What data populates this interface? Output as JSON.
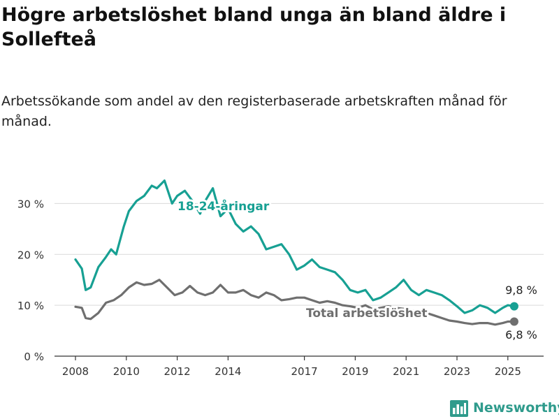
{
  "header": {
    "title": "Högre arbetslöshet bland unga än bland äldre i Sollefteå",
    "subtitle": "Arbetssökande som andel av den registerbaserade arbetskraften månad för månad."
  },
  "brand": {
    "name": "Newsworthy",
    "icon": "bar-chart-logo-icon",
    "color": "#2f9b8c"
  },
  "chart_data": {
    "type": "line",
    "title": "Högre arbetslöshet bland unga än bland äldre i Sollefteå",
    "subtitle": "Arbetssökande som andel av den registerbaserade arbetskraften månad för månad.",
    "xlabel": "",
    "ylabel": "",
    "xlim": [
      2008.0,
      2025.3
    ],
    "ylim": [
      0,
      35
    ],
    "x_ticks": [
      2008,
      2010,
      2012,
      2014,
      2017,
      2019,
      2021,
      2023,
      2025
    ],
    "x_tick_labels": [
      "2008",
      "2010",
      "2012",
      "2014",
      "2017",
      "2019",
      "2021",
      "2023",
      "2025"
    ],
    "y_ticks": [
      0,
      10,
      20,
      30
    ],
    "y_tick_labels": [
      "0 %",
      "10 %",
      "20 %",
      "30 %"
    ],
    "grid": "horizontal",
    "legend": "inline labels",
    "series": [
      {
        "name": "18-24-åringar",
        "color": "#17a093",
        "end_label": "9,8 %",
        "x": [
          2008.0,
          2008.25,
          2008.4,
          2008.6,
          2008.9,
          2009.2,
          2009.4,
          2009.6,
          2009.9,
          2010.1,
          2010.4,
          2010.7,
          2011.0,
          2011.2,
          2011.5,
          2011.8,
          2012.0,
          2012.3,
          2012.6,
          2012.9,
          2013.1,
          2013.4,
          2013.7,
          2014.0,
          2014.3,
          2014.6,
          2014.9,
          2015.2,
          2015.5,
          2015.8,
          2016.1,
          2016.4,
          2016.7,
          2017.0,
          2017.3,
          2017.6,
          2017.9,
          2018.2,
          2018.5,
          2018.8,
          2019.1,
          2019.4,
          2019.7,
          2020.0,
          2020.3,
          2020.6,
          2020.9,
          2021.2,
          2021.5,
          2021.8,
          2022.1,
          2022.4,
          2022.7,
          2023.0,
          2023.3,
          2023.6,
          2023.9,
          2024.2,
          2024.5,
          2024.8,
          2025.0,
          2025.25
        ],
        "y": [
          19.0,
          17.2,
          13.0,
          13.5,
          17.5,
          19.5,
          21.0,
          20.0,
          25.5,
          28.5,
          30.5,
          31.5,
          33.5,
          33.0,
          34.5,
          30.0,
          31.5,
          32.5,
          30.5,
          28.0,
          30.5,
          33.0,
          27.5,
          29.0,
          26.0,
          24.5,
          25.5,
          24.0,
          21.0,
          21.5,
          22.0,
          20.0,
          17.0,
          17.8,
          19.0,
          17.5,
          17.0,
          16.5,
          15.0,
          13.0,
          12.5,
          13.0,
          11.0,
          11.5,
          12.5,
          13.5,
          15.0,
          13.0,
          12.0,
          13.0,
          12.5,
          12.0,
          11.0,
          9.8,
          8.5,
          9.0,
          10.0,
          9.5,
          8.5,
          9.5,
          10.0,
          9.8
        ]
      },
      {
        "name": "Total arbetslöshet",
        "color": "#6f6f6f",
        "end_label": "6,8 %",
        "x": [
          2008.0,
          2008.25,
          2008.4,
          2008.6,
          2008.9,
          2009.2,
          2009.5,
          2009.8,
          2010.1,
          2010.4,
          2010.7,
          2011.0,
          2011.3,
          2011.6,
          2011.9,
          2012.2,
          2012.5,
          2012.8,
          2013.1,
          2013.4,
          2013.7,
          2014.0,
          2014.3,
          2014.6,
          2014.9,
          2015.2,
          2015.5,
          2015.8,
          2016.1,
          2016.4,
          2016.7,
          2017.0,
          2017.3,
          2017.6,
          2017.9,
          2018.2,
          2018.5,
          2018.8,
          2019.1,
          2019.4,
          2019.7,
          2020.0,
          2020.3,
          2020.6,
          2020.9,
          2021.2,
          2021.5,
          2021.8,
          2022.1,
          2022.4,
          2022.7,
          2023.0,
          2023.3,
          2023.6,
          2023.9,
          2024.2,
          2024.5,
          2024.8,
          2025.0,
          2025.25
        ],
        "y": [
          9.7,
          9.5,
          7.5,
          7.3,
          8.5,
          10.5,
          11.0,
          12.0,
          13.5,
          14.5,
          14.0,
          14.2,
          15.0,
          13.5,
          12.0,
          12.5,
          13.8,
          12.5,
          12.0,
          12.5,
          14.0,
          12.5,
          12.5,
          13.0,
          12.0,
          11.5,
          12.5,
          12.0,
          11.0,
          11.2,
          11.5,
          11.5,
          11.0,
          10.5,
          10.8,
          10.5,
          10.0,
          9.8,
          9.5,
          10.0,
          9.2,
          9.5,
          9.8,
          9.5,
          9.3,
          9.0,
          8.8,
          8.5,
          8.0,
          7.5,
          7.0,
          6.8,
          6.5,
          6.3,
          6.5,
          6.5,
          6.2,
          6.5,
          6.8,
          6.8
        ]
      }
    ]
  }
}
